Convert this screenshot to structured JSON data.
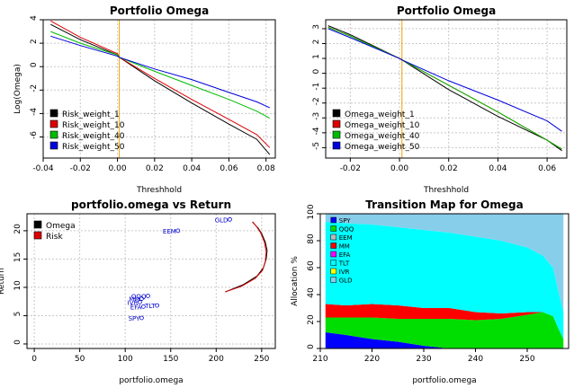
{
  "colors": {
    "black": "#000000",
    "red": "#dd0000",
    "green": "#00bb00",
    "blue": "#0000dd",
    "orange": "#f0a000",
    "grid": "#c8c8c8",
    "SPY": "#0000ff",
    "QQQ": "#00dd00",
    "EEM": "#bbbbbb",
    "MM": "#ff0000",
    "EFA": "#ff00ff",
    "TLT": "#00ffff",
    "IVR": "#ffff00",
    "GLD": "#87ceeb"
  },
  "chart_data": [
    {
      "type": "line",
      "title": "Portfolio Omega",
      "xlabel": "Threshhold",
      "ylabel": "Log(Omega)",
      "xlim": [
        -0.04,
        0.085
      ],
      "ylim": [
        -7.8,
        4
      ],
      "xticks": [
        -0.04,
        -0.02,
        0.0,
        0.02,
        0.04,
        0.06,
        0.08
      ],
      "xtick_labels": [
        "-0.04",
        "-0.02",
        "0.00",
        "0.02",
        "0.04",
        "0.06",
        "0.08"
      ],
      "yticks": [
        4,
        2,
        0,
        -2,
        -4,
        -6
      ],
      "ytick_labels": [
        "4",
        "2",
        "0",
        "-2",
        "-4",
        "-6"
      ],
      "vline": 0.001,
      "hline_dotted": 4,
      "legend_position": "bottom-left",
      "series": [
        {
          "name": "Risk_weight_1",
          "color_key": "black",
          "x": [
            -0.036,
            -0.02,
            0.0,
            0.001,
            0.02,
            0.04,
            0.06,
            0.075,
            0.082
          ],
          "y": [
            3.6,
            2.3,
            1.0,
            0.8,
            -1.2,
            -3.1,
            -4.9,
            -6.2,
            -7.5
          ]
        },
        {
          "name": "Risk_weight_10",
          "color_key": "red",
          "x": [
            -0.036,
            -0.02,
            0.0,
            0.001,
            0.02,
            0.04,
            0.06,
            0.075,
            0.082
          ],
          "y": [
            3.9,
            2.5,
            1.1,
            0.8,
            -1.0,
            -2.8,
            -4.5,
            -5.8,
            -6.9
          ]
        },
        {
          "name": "Risk_weight_40",
          "color_key": "green",
          "x": [
            -0.036,
            -0.02,
            0.0,
            0.001,
            0.02,
            0.04,
            0.06,
            0.075,
            0.082
          ],
          "y": [
            3.0,
            2.0,
            1.0,
            0.8,
            -0.4,
            -1.6,
            -2.8,
            -3.8,
            -4.4
          ]
        },
        {
          "name": "Risk_weight_50",
          "color_key": "blue",
          "x": [
            -0.036,
            -0.02,
            0.0,
            0.001,
            0.02,
            0.04,
            0.06,
            0.075,
            0.082
          ],
          "y": [
            2.6,
            1.8,
            0.9,
            0.8,
            -0.2,
            -1.1,
            -2.2,
            -3.0,
            -3.5
          ]
        }
      ]
    },
    {
      "type": "line",
      "title": "Portfolio Omega",
      "xlabel": "Threshhold",
      "ylabel": "",
      "xlim": [
        -0.03,
        0.068
      ],
      "ylim": [
        -5.7,
        3.6
      ],
      "xticks": [
        -0.02,
        0.0,
        0.02,
        0.04,
        0.06
      ],
      "xtick_labels": [
        "-0.02",
        "0.00",
        "0.02",
        "0.04",
        "0.06"
      ],
      "yticks": [
        3,
        2,
        1,
        0,
        -1,
        -2,
        -3,
        -4,
        -5
      ],
      "ytick_labels": [
        "3",
        "2",
        "1",
        "0",
        "-1",
        "-2",
        "-3",
        "-4",
        "-5"
      ],
      "vline": 0.001,
      "hline_dotted": 3.6,
      "legend_position": "bottom-left",
      "series": [
        {
          "name": "Omega_weight_1",
          "color_key": "black",
          "x": [
            -0.029,
            -0.02,
            0.0,
            0.001,
            0.02,
            0.04,
            0.06,
            0.066
          ],
          "y": [
            3.2,
            2.6,
            1.0,
            0.9,
            -1.1,
            -2.9,
            -4.5,
            -5.2
          ]
        },
        {
          "name": "Omega_weight_10",
          "color_key": "red",
          "x": [
            -0.029,
            -0.02,
            0.0,
            0.001,
            0.02,
            0.04,
            0.06,
            0.066
          ],
          "y": [
            3.1,
            2.5,
            1.0,
            0.9,
            -0.8,
            -2.6,
            -4.5,
            -5.1
          ]
        },
        {
          "name": "Omega_weight_40",
          "color_key": "green",
          "x": [
            -0.029,
            -0.02,
            0.0,
            0.001,
            0.02,
            0.04,
            0.06,
            0.066
          ],
          "y": [
            3.1,
            2.5,
            1.0,
            0.9,
            -0.8,
            -2.6,
            -4.5,
            -5.1
          ]
        },
        {
          "name": "Omega_weight_50",
          "color_key": "blue",
          "x": [
            -0.029,
            -0.02,
            0.0,
            0.001,
            0.02,
            0.04,
            0.06,
            0.066
          ],
          "y": [
            3.0,
            2.4,
            1.0,
            0.9,
            -0.5,
            -1.8,
            -3.2,
            -3.9
          ]
        }
      ]
    },
    {
      "type": "scatter",
      "title": "portfolio.omega vs Return",
      "xlabel": "portfolio.omega",
      "ylabel": "Return",
      "xlim": [
        -8,
        265
      ],
      "ylim": [
        -0.8,
        23
      ],
      "xticks": [
        0,
        50,
        100,
        150,
        200,
        250
      ],
      "xtick_labels": [
        "0",
        "50",
        "100",
        "150",
        "200",
        "250"
      ],
      "yticks": [
        0,
        5,
        10,
        15,
        20
      ],
      "ytick_labels": [
        "0",
        "5",
        "10",
        "15",
        "20"
      ],
      "legend_position": "top-left",
      "legend": [
        {
          "name": "Omega",
          "color_key": "black"
        },
        {
          "name": "Risk",
          "color_key": "red"
        }
      ],
      "assets": [
        {
          "label": "GLD",
          "x": 215,
          "y": 22.0
        },
        {
          "label": "EEM",
          "x": 158,
          "y": 20.0
        },
        {
          "label": "MM",
          "x": 118,
          "y": 8.0
        },
        {
          "label": "IVR",
          "x": 116,
          "y": 7.4
        },
        {
          "label": "EFA",
          "x": 120,
          "y": 6.6
        },
        {
          "label": "QQQ",
          "x": 125,
          "y": 8.5
        },
        {
          "label": "TLT",
          "x": 135,
          "y": 6.8
        },
        {
          "label": "SPY",
          "x": 118,
          "y": 4.6
        }
      ],
      "frontier_omega": {
        "x": [
          210,
          230,
          245,
          252,
          255,
          256,
          254,
          250,
          246,
          240
        ],
        "y": [
          9.2,
          10.5,
          12.0,
          13.5,
          15.0,
          16.5,
          18.0,
          19.5,
          20.5,
          21.5
        ]
      },
      "frontier_risk": {
        "x": [
          210,
          228,
          243,
          251,
          254,
          255,
          253,
          249,
          245,
          240
        ],
        "y": [
          9.2,
          10.2,
          11.6,
          13.0,
          14.6,
          16.3,
          18.0,
          19.6,
          20.6,
          21.6
        ]
      }
    },
    {
      "type": "area",
      "title": "Transition Map for Omega",
      "xlabel": "portfolio.omega",
      "ylabel": "Allocation %",
      "xlim": [
        210,
        258
      ],
      "ylim": [
        0,
        100
      ],
      "xticks": [
        210,
        220,
        230,
        240,
        250
      ],
      "xtick_labels": [
        "210",
        "220",
        "230",
        "240",
        "250"
      ],
      "yticks": [
        0,
        20,
        40,
        60,
        80,
        100
      ],
      "ytick_labels": [
        "0",
        "20",
        "40",
        "60",
        "80",
        "100"
      ],
      "legend_position": "top-left",
      "x": [
        211,
        215,
        220,
        225,
        230,
        235,
        240,
        245,
        250,
        253,
        255,
        256,
        257
      ],
      "series": [
        {
          "name": "SPY",
          "color_key": "SPY",
          "values": [
            12,
            10,
            7,
            5,
            2,
            0,
            0,
            0,
            0,
            0,
            0,
            0,
            0
          ]
        },
        {
          "name": "QQQ",
          "color_key": "QQQ",
          "values": [
            11,
            13,
            16,
            17,
            20,
            22,
            21,
            22,
            25,
            27,
            24,
            15,
            7
          ]
        },
        {
          "name": "EEM",
          "color_key": "EEM",
          "values": [
            0,
            0,
            0,
            0,
            0,
            0,
            0,
            0,
            0,
            0,
            0,
            0,
            0
          ]
        },
        {
          "name": "MM",
          "color_key": "MM",
          "values": [
            10,
            9,
            10,
            10,
            8,
            8,
            6,
            4,
            2,
            0,
            0,
            0,
            0
          ]
        },
        {
          "name": "EFA",
          "color_key": "EFA",
          "values": [
            0,
            0,
            0,
            0,
            0,
            0,
            0,
            0,
            0,
            0,
            0,
            0,
            0
          ]
        },
        {
          "name": "TLT",
          "color_key": "TLT",
          "values": [
            61,
            61,
            59,
            58,
            58,
            56,
            56,
            54,
            48,
            42,
            36,
            28,
            20
          ]
        },
        {
          "name": "IVR",
          "color_key": "IVR",
          "values": [
            0,
            0,
            0,
            0,
            0,
            0,
            0,
            0,
            0,
            0,
            0,
            0,
            0
          ]
        },
        {
          "name": "GLD",
          "color_key": "GLD",
          "values": [
            6,
            7,
            8,
            10,
            12,
            14,
            17,
            20,
            25,
            31,
            40,
            57,
            73
          ]
        }
      ]
    }
  ]
}
